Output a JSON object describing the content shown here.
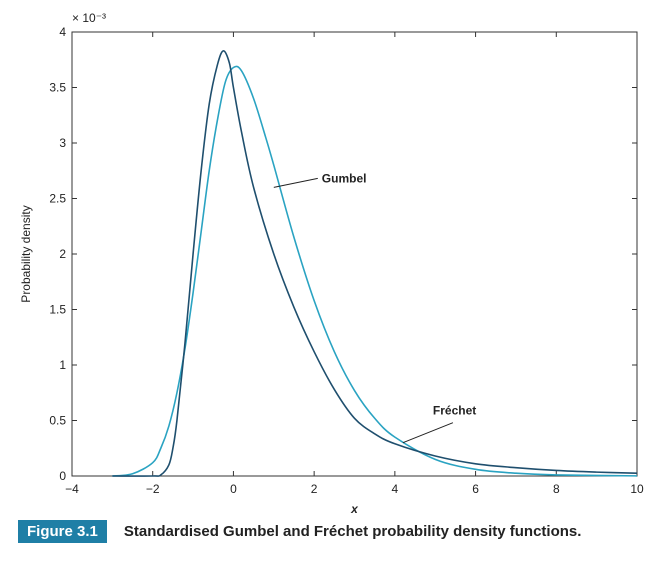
{
  "chart_data": {
    "type": "line",
    "xlabel": "x",
    "ylabel": "Probability density",
    "y_exponent_label": "× 10⁻³",
    "xlim": [
      -4,
      10
    ],
    "ylim": [
      0,
      4
    ],
    "x_ticks": [
      -4,
      -2,
      0,
      2,
      4,
      6,
      8,
      10
    ],
    "x_tick_labels": [
      "−4",
      "−2",
      "0",
      "2",
      "4",
      "6",
      "8",
      "10"
    ],
    "y_ticks": [
      0,
      0.5,
      1,
      1.5,
      2,
      2.5,
      3,
      3.5,
      4
    ],
    "y_tick_labels": [
      "0",
      "0.5",
      "1",
      "1.5",
      "2",
      "2.5",
      "3",
      "3.5",
      "4"
    ],
    "grid": false,
    "colors": {
      "gumbel": "#2aa3c2",
      "frechet": "#1f4f6e"
    },
    "series": [
      {
        "name": "Gumbel",
        "x": [
          -3,
          -2.5,
          -2,
          -1.8,
          -1.6,
          -1.4,
          -1.2,
          -1,
          -0.8,
          -0.6,
          -0.4,
          -0.2,
          0,
          0.2,
          0.5,
          0.8,
          1,
          1.5,
          2,
          2.5,
          3,
          3.5,
          4,
          5,
          6,
          7,
          8,
          10
        ],
        "y": [
          0,
          0.02,
          0.12,
          0.25,
          0.45,
          0.75,
          1.15,
          1.65,
          2.2,
          2.75,
          3.2,
          3.55,
          3.68,
          3.65,
          3.4,
          3.05,
          2.8,
          2.15,
          1.58,
          1.12,
          0.77,
          0.52,
          0.35,
          0.15,
          0.06,
          0.025,
          0.01,
          0.001
        ]
      },
      {
        "name": "Fréchet",
        "x": [
          -3,
          -2,
          -1.8,
          -1.6,
          -1.5,
          -1.4,
          -1.2,
          -1,
          -0.8,
          -0.6,
          -0.4,
          -0.25,
          -0.1,
          0,
          0.2,
          0.5,
          1,
          1.5,
          2,
          2.5,
          3,
          3.5,
          4,
          5,
          6,
          7,
          8,
          9,
          10
        ],
        "y": [
          0,
          0,
          0.01,
          0.1,
          0.25,
          0.5,
          1.2,
          2.0,
          2.75,
          3.35,
          3.7,
          3.83,
          3.72,
          3.5,
          3.1,
          2.6,
          2.0,
          1.52,
          1.12,
          0.78,
          0.52,
          0.38,
          0.29,
          0.18,
          0.11,
          0.075,
          0.05,
          0.035,
          0.025
        ]
      }
    ],
    "annotations": [
      {
        "text": "Gumbel",
        "points_to": [
          1.0,
          2.6
        ],
        "placement": "right"
      },
      {
        "text": "Fréchet",
        "points_to": [
          4.2,
          0.3
        ],
        "placement": "above-right"
      }
    ]
  },
  "caption": {
    "badge": "Figure 3.1",
    "text": "Standardised Gumbel and Fréchet probability density functions."
  }
}
